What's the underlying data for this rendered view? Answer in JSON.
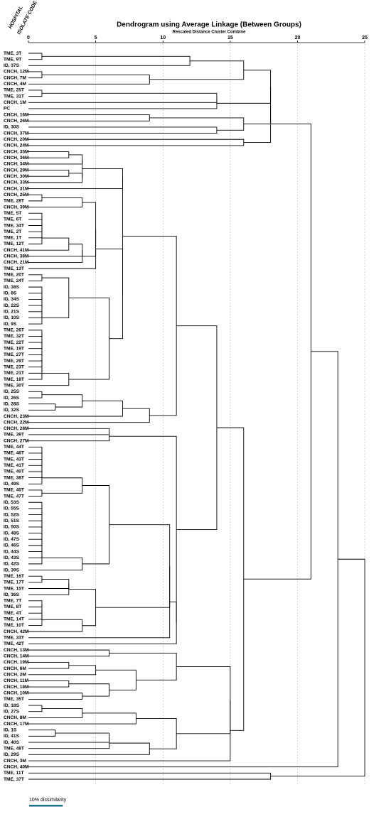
{
  "chart_data": {
    "type": "dendrogram",
    "title": "Dendrogram using Average Linkage (Between Groups)",
    "subtitle": "Rescaled Distance Cluster Combine",
    "column_labels": [
      "HOSPITAL",
      "ISOLATE CODE"
    ],
    "xlim": [
      0,
      26
    ],
    "xticks": [
      0,
      5,
      10,
      15,
      20,
      25
    ],
    "grid": true,
    "color": "#000000",
    "leaves": [
      "TME, 3T",
      "TME, 9T",
      "ID, 37S",
      "CNCH, 12M",
      "CNCH, 7M",
      "CNCH, 4M",
      "TME, 25T",
      "TME, 31T",
      "CNCH, 1M",
      "PC",
      "CNCH, 16M",
      "CNCH, 26M",
      "ID, 30S",
      "CNCH, 37M",
      "CNCH, 20M",
      "CNCH, 24M",
      "CNCH, 35M",
      "CNCH, 36M",
      "CNCH, 34M",
      "CNCH, 29M",
      "CNCH, 30M",
      "CNCH, 33M",
      "CNCH, 31M",
      "CNCH, 25M",
      "TME, 28T",
      "CNCH, 39M",
      "TME, 5T",
      "TME, 6T",
      "TME, 34T",
      "TME, 2T",
      "TME, 1T",
      "TME, 12T",
      "CNCH, 41M",
      "CNCH, 38M",
      "CNCH, 21M",
      "TME, 13T",
      "TME, 20T",
      "TME, 24T",
      "ID, 38S",
      "ID, 8S",
      "ID, 34S",
      "ID, 22S",
      "ID, 21S",
      "ID, 10S",
      "ID, 9S",
      "TME, 26T",
      "TME, 32T",
      "TME, 22T",
      "TME, 19T",
      "TME, 27T",
      "TME, 29T",
      "TME, 23T",
      "TME, 21T",
      "TME, 18T",
      "TME, 30T",
      "ID, 25S",
      "ID, 26S",
      "ID, 28S",
      "ID, 32S",
      "CNCH, 23M",
      "CNCH, 22M",
      "CNCH, 28M",
      "TME, 39T",
      "CNCH, 27M",
      "TME, 44T",
      "TME, 46T",
      "TME, 43T",
      "TME, 41T",
      "TME, 40T",
      "TME, 38T",
      "ID, 49S",
      "TME, 45T",
      "TME, 47T",
      "ID, 53S",
      "ID, 55S",
      "ID, 52S",
      "ID, 51S",
      "ID, 50S",
      "ID, 48S",
      "ID, 47S",
      "ID, 46S",
      "ID, 44S",
      "ID, 43S",
      "ID, 42S",
      "ID, 39S",
      "TME, 16T",
      "TME, 17T",
      "TME, 15T",
      "ID, 36S",
      "TME, 7T",
      "TME, 8T",
      "TME, 4T",
      "TME, 14T",
      "TME, 10T",
      "CNCH, 42M",
      "TME, 33T",
      "TME, 42T",
      "CNCH, 13M",
      "CNCH, 14M",
      "CNCH, 19M",
      "CNCH, 6M",
      "CNCH, 2M",
      "CNCH, 11M",
      "CNCH, 18M",
      "CNCH, 10M",
      "TME, 35T",
      "ID, 18S",
      "ID, 27S",
      "CNCH, 8M",
      "CNCH, 17M",
      "ID, 1S",
      "ID, 41S",
      "ID, 40S",
      "TME, 48T",
      "ID, 29S",
      "CNCH, 3M",
      "CNCH, 40M",
      "TME, 11T",
      "TME, 37T"
    ],
    "merges": [
      [
        0,
        1,
        1
      ],
      [
        119,
        2,
        12
      ],
      [
        3,
        4,
        1
      ],
      [
        121,
        5,
        9
      ],
      [
        120,
        122,
        16
      ],
      [
        6,
        7,
        1
      ],
      [
        124,
        8,
        14
      ],
      [
        125,
        9,
        14
      ],
      [
        10,
        11,
        9
      ],
      [
        12,
        13,
        14
      ],
      [
        127,
        128,
        16
      ],
      [
        123,
        126,
        18
      ],
      [
        130,
        129,
        18
      ],
      [
        14,
        15,
        16
      ],
      [
        131,
        132,
        18
      ],
      [
        16,
        17,
        3
      ],
      [
        134,
        18,
        4
      ],
      [
        19,
        20,
        3
      ],
      [
        136,
        21,
        4
      ],
      [
        135,
        137,
        4
      ],
      [
        138,
        22,
        7
      ],
      [
        23,
        24,
        1
      ],
      [
        140,
        25,
        4
      ],
      [
        26,
        27,
        1
      ],
      [
        142,
        28,
        1
      ],
      [
        143,
        29,
        1
      ],
      [
        144,
        30,
        1
      ],
      [
        145,
        31,
        1
      ],
      [
        146,
        32,
        3
      ],
      [
        147,
        33,
        4
      ],
      [
        148,
        34,
        4
      ],
      [
        141,
        149,
        5
      ],
      [
        150,
        35,
        5
      ],
      [
        36,
        37,
        1
      ],
      [
        38,
        39,
        1
      ],
      [
        153,
        40,
        1
      ],
      [
        154,
        41,
        1
      ],
      [
        155,
        42,
        1
      ],
      [
        156,
        43,
        1
      ],
      [
        157,
        44,
        1
      ],
      [
        152,
        158,
        3
      ],
      [
        45,
        46,
        1
      ],
      [
        160,
        47,
        1
      ],
      [
        161,
        48,
        1
      ],
      [
        162,
        49,
        1
      ],
      [
        163,
        50,
        1
      ],
      [
        164,
        51,
        1
      ],
      [
        165,
        52,
        1
      ],
      [
        166,
        53,
        1
      ],
      [
        167,
        54,
        3
      ],
      [
        159,
        168,
        6
      ],
      [
        151,
        169,
        7
      ],
      [
        139,
        170,
        7
      ],
      [
        55,
        56,
        1
      ],
      [
        57,
        58,
        2
      ],
      [
        172,
        173,
        4
      ],
      [
        174,
        59,
        7
      ],
      [
        175,
        60,
        9
      ],
      [
        171,
        176,
        11
      ],
      [
        61,
        62,
        6
      ],
      [
        178,
        63,
        6
      ],
      [
        64,
        65,
        1
      ],
      [
        180,
        66,
        1
      ],
      [
        181,
        67,
        1
      ],
      [
        182,
        68,
        1
      ],
      [
        183,
        69,
        1
      ],
      [
        184,
        70,
        1
      ],
      [
        71,
        72,
        1
      ],
      [
        185,
        186,
        4
      ],
      [
        73,
        74,
        1
      ],
      [
        188,
        75,
        1
      ],
      [
        189,
        76,
        1
      ],
      [
        190,
        77,
        1
      ],
      [
        191,
        78,
        1
      ],
      [
        192,
        79,
        1
      ],
      [
        193,
        80,
        1
      ],
      [
        194,
        81,
        1
      ],
      [
        195,
        82,
        1
      ],
      [
        196,
        83,
        1
      ],
      [
        197,
        84,
        4
      ],
      [
        187,
        198,
        6
      ],
      [
        85,
        86,
        1
      ],
      [
        200,
        87,
        3
      ],
      [
        201,
        88,
        3
      ],
      [
        89,
        90,
        1
      ],
      [
        203,
        91,
        1
      ],
      [
        204,
        92,
        1
      ],
      [
        205,
        93,
        1
      ],
      [
        206,
        94,
        4
      ],
      [
        202,
        207,
        5
      ],
      [
        199,
        208,
        10.5
      ],
      [
        209,
        95,
        10.5
      ],
      [
        210,
        96,
        11
      ],
      [
        179,
        211,
        11
      ],
      [
        177,
        212,
        14
      ],
      [
        97,
        98,
        6
      ],
      [
        99,
        100,
        3
      ],
      [
        215,
        101,
        5
      ],
      [
        102,
        103,
        3
      ],
      [
        104,
        105,
        4
      ],
      [
        217,
        218,
        6
      ],
      [
        216,
        219,
        8
      ],
      [
        214,
        220,
        11
      ],
      [
        106,
        107,
        1
      ],
      [
        222,
        108,
        4
      ],
      [
        223,
        109,
        8
      ],
      [
        110,
        111,
        2
      ],
      [
        225,
        112,
        6
      ],
      [
        226,
        113,
        6
      ],
      [
        227,
        114,
        9
      ],
      [
        224,
        228,
        11
      ],
      [
        221,
        229,
        15
      ],
      [
        230,
        115,
        15
      ],
      [
        213,
        231,
        16
      ],
      [
        133,
        232,
        21
      ],
      [
        233,
        116,
        23
      ],
      [
        117,
        118,
        18
      ],
      [
        234,
        235,
        25
      ]
    ],
    "scale_bar": {
      "label": "10% dissimilarity",
      "length": 2.5,
      "color": "#1f6f8b"
    }
  }
}
